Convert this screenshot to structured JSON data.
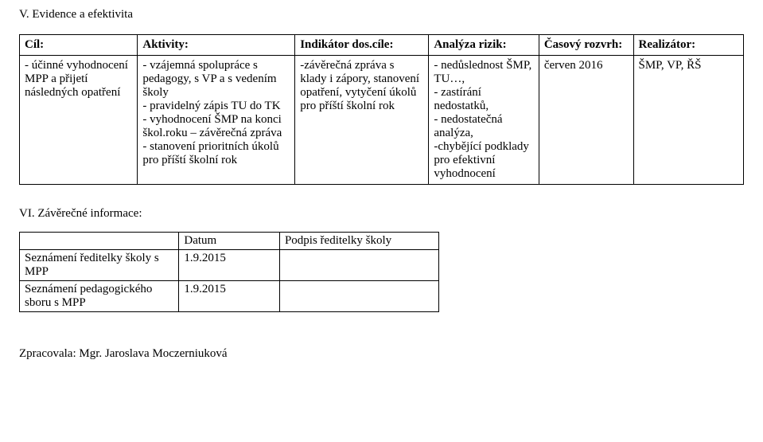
{
  "section1_title": "V. Evidence a efektivita",
  "table1": {
    "headers": {
      "cil": "Cíl:",
      "aktivity": "Aktivity:",
      "indikator": "Indikátor dos.cíle:",
      "analyza": "Analýza rizik:",
      "casovy": "Časový rozvrh:",
      "realizator": "Realizátor:"
    },
    "row": {
      "cil": "- účinné vyhodnocení MPP a přijetí následných opatření",
      "aktivity": "- vzájemná spolupráce s pedagogy, s VP a s vedením školy\n- pravidelný zápis TU do TK\n- vyhodnocení ŠMP na konci škol.roku – závěrečná zpráva\n- stanovení prioritních úkolů pro příští školní rok",
      "indikator": "-závěrečná zpráva s klady i zápory, stanovení opatření, vytyčení úkolů pro příští školní rok",
      "analyza": "- nedůslednost ŠMP, TU…,\n- zastírání nedostatků,\n- nedostatečná analýza,\n-chybějící podklady pro efektivní vyhodnocení",
      "casovy": "červen 2016",
      "realizator": "ŠMP, VP, ŘŠ"
    }
  },
  "section2_title": "VI. Závěrečné informace:",
  "table2": {
    "headers": {
      "blank": "",
      "datum": "Datum",
      "podpis": "Podpis ředitelky školy"
    },
    "rows": [
      {
        "label": "Seznámení ředitelky školy s MPP",
        "datum": "1.9.2015",
        "podpis": ""
      },
      {
        "label": "Seznámení pedagogického sboru s MPP",
        "datum": "1.9.2015",
        "podpis": ""
      }
    ]
  },
  "footer": "Zpracovala: Mgr. Jaroslava Moczerniuková"
}
